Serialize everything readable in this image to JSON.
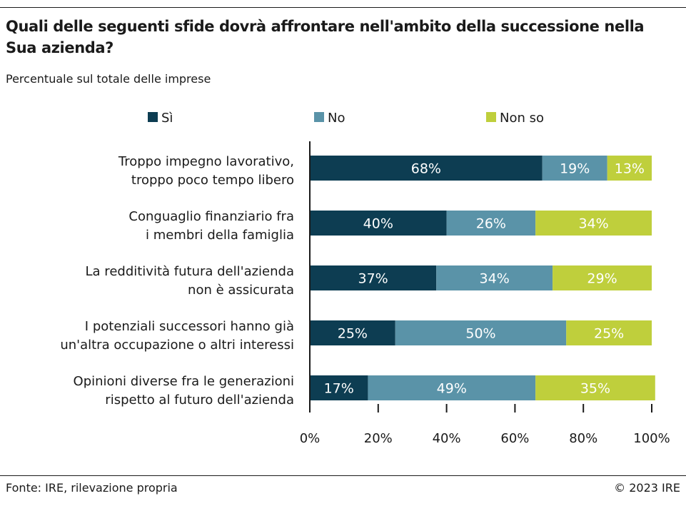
{
  "header": {
    "title": "Quali delle seguenti sfide dovrà affrontare nell'ambito della successione nella Sua azienda?",
    "subtitle": "Percentuale sul totale delle imprese"
  },
  "footer": {
    "source": "Fonte: IRE, rilevazione propria",
    "copyright": "© 2023 IRE"
  },
  "chart_data": {
    "type": "bar",
    "orientation": "horizontal",
    "stacked": true,
    "categories": [
      [
        "Troppo impegno lavorativo,",
        "troppo poco tempo libero"
      ],
      [
        "Conguaglio finanziario fra",
        "i membri della famiglia"
      ],
      [
        "La redditività futura dell'azienda",
        "non è assicurata"
      ],
      [
        "I potenziali successori hanno già",
        "un'altra occupazione o altri interessi"
      ],
      [
        "Opinioni diverse fra le generazioni",
        "rispetto al futuro dell'azienda"
      ]
    ],
    "series": [
      {
        "name": "Sì",
        "color": "#0d3d52",
        "values": [
          68,
          40,
          37,
          25,
          17
        ]
      },
      {
        "name": "No",
        "color": "#5a93a8",
        "values": [
          19,
          26,
          34,
          50,
          49
        ]
      },
      {
        "name": "Non so",
        "color": "#bfcf3c",
        "values": [
          13,
          34,
          29,
          25,
          35
        ]
      }
    ],
    "data_labels": [
      [
        "68%",
        "40%",
        "37%",
        "25%",
        "17%"
      ],
      [
        "19%",
        "26%",
        "34%",
        "50%",
        "49%"
      ],
      [
        "13%",
        "34%",
        "29%",
        "25%",
        "35%"
      ]
    ],
    "xlim": [
      0,
      100
    ],
    "xticks": [
      0,
      20,
      40,
      60,
      80,
      100
    ],
    "xtick_labels": [
      "0%",
      "20%",
      "40%",
      "60%",
      "80%",
      "100%"
    ],
    "grid": false,
    "legend_position": "top"
  }
}
